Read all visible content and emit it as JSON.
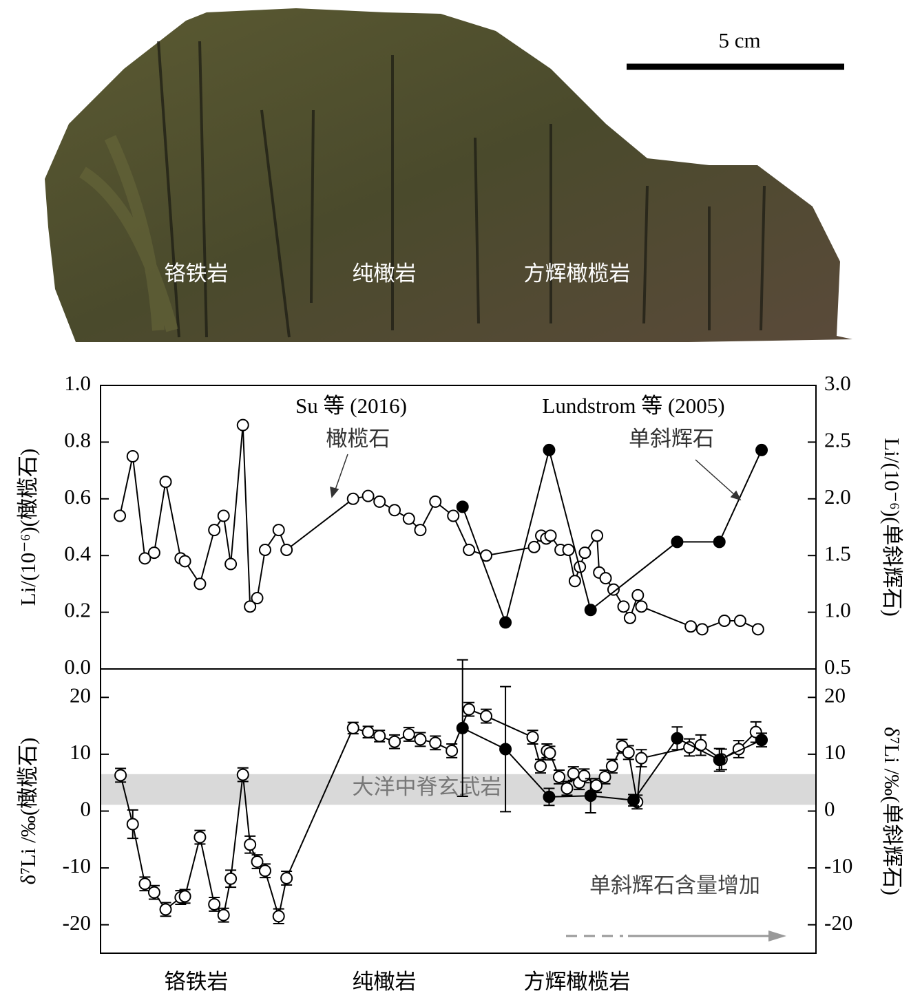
{
  "photo": {
    "scale_bar": "5 cm",
    "labels": [
      "铬铁岩",
      "纯橄岩",
      "方辉橄榄岩"
    ]
  },
  "chart_data": [
    {
      "type": "line",
      "ylabel": "Li/(10⁻⁶)(橄榄石)",
      "y2label": "Li/(10⁻⁶)(单斜辉石)",
      "annotations": [
        "Su 等  (2016)",
        "Lundstrom 等 (2005)"
      ],
      "xlim": [
        0,
        100
      ],
      "ylim": [
        0,
        1
      ],
      "y2lim": [
        0.5,
        3.0
      ],
      "yticks": [
        {
          "value": 0,
          "label": "0.0"
        },
        0.2,
        0.4,
        0.6,
        0.8,
        {
          "value": 1,
          "label": "1.0"
        }
      ],
      "y2ticks": [
        0.5,
        {
          "value": 1,
          "label": "1.0"
        },
        1.5,
        {
          "value": 2,
          "label": "2.0"
        },
        2.5,
        {
          "value": 3,
          "label": "3.0"
        }
      ],
      "series": [
        {
          "name": "橄榄石",
          "color": "#000000",
          "fill": "#ffffff",
          "axis": "y",
          "x": [
            2.7,
            4.5,
            6.2,
            7.5,
            9.1,
            11.2,
            11.8,
            13.9,
            15.9,
            17.2,
            18.2,
            19.9,
            20.9,
            21.9,
            23.0,
            24.9,
            26.0,
            35.3,
            37.4,
            39.0,
            41.1,
            43.1,
            44.7,
            46.8,
            49.3,
            51.5,
            53.9,
            60.6,
            61.6,
            62.3,
            62.9,
            64.3,
            65.4,
            66.3,
            67.0,
            67.7,
            69.4,
            69.7,
            70.6,
            71.7,
            73.1,
            74.0,
            75.1,
            75.6,
            82.5,
            84.1,
            87.2,
            89.4,
            91.9
          ],
          "values": [
            0.54,
            0.75,
            0.39,
            0.41,
            0.66,
            0.39,
            0.38,
            0.3,
            0.49,
            0.54,
            0.37,
            0.86,
            0.22,
            0.25,
            0.42,
            0.49,
            0.42,
            0.6,
            0.61,
            0.59,
            0.56,
            0.53,
            0.49,
            0.59,
            0.54,
            0.42,
            0.4,
            0.43,
            0.47,
            0.46,
            0.47,
            0.42,
            0.42,
            0.31,
            0.36,
            0.41,
            0.47,
            0.34,
            0.32,
            0.28,
            0.22,
            0.18,
            0.26,
            0.22,
            0.15,
            0.14,
            0.17,
            0.17,
            0.14
          ]
        },
        {
          "name": "单斜辉石",
          "color": "#000000",
          "fill": "#000000",
          "axis": "y2",
          "x": [
            50.6,
            56.6,
            62.7,
            68.5,
            80.6,
            86.5,
            92.4
          ],
          "values": [
            1.93,
            0.91,
            2.43,
            1.02,
            1.62,
            1.62,
            2.43
          ]
        }
      ]
    },
    {
      "type": "line",
      "ylabel": "δ⁷Li /‰(橄榄石)",
      "y2label": "δ⁷Li /‰(单斜辉石)",
      "band": [
        1.1,
        6.5
      ],
      "band_label": "大洋中脊玄武岩",
      "band_color": "#d9d9d9",
      "trend_label": "单斜辉石含量增加",
      "xlim": [
        0,
        100
      ],
      "ylim": [
        -25,
        25
      ],
      "y2lim": [
        -25,
        25
      ],
      "yticks": [
        -20,
        -10,
        0,
        10,
        20
      ],
      "y2ticks": [
        -20,
        -10,
        0,
        10,
        20
      ],
      "series": [
        {
          "color": "#000000",
          "fill": "#ffffff",
          "axis": "y",
          "x": [
            2.8,
            4.5,
            6.2,
            7.5,
            9.1,
            11.2,
            11.8,
            13.9,
            15.9,
            17.2,
            18.2,
            19.9,
            20.9,
            21.9,
            23.0,
            24.9,
            26.0,
            35.3,
            37.4,
            39.0,
            41.1,
            43.1,
            44.7,
            46.8,
            49.1,
            51.5,
            53.9,
            60.4,
            61.5,
            62.4,
            62.8,
            64.1,
            65.2,
            66.1,
            66.9,
            67.6,
            69.3,
            70.5,
            71.5,
            72.9,
            73.8,
            75.0,
            75.6,
            82.3,
            83.9,
            86.8,
            89.2,
            91.6
          ],
          "values": [
            6.3,
            -2.3,
            -12.8,
            -14.3,
            -17.3,
            -15.2,
            -15.0,
            -4.6,
            -16.4,
            -18.3,
            -11.9,
            6.4,
            -5.9,
            -8.9,
            -10.5,
            -18.5,
            -11.8,
            14.6,
            13.9,
            13.2,
            12.2,
            13.5,
            12.6,
            12.0,
            10.6,
            17.9,
            16.7,
            13.0,
            7.9,
            10.6,
            10.2,
            6.0,
            4.0,
            6.6,
            5.0,
            6.2,
            4.5,
            6.0,
            7.9,
            11.4,
            10.3,
            1.6,
            9.3,
            11.2,
            11.6,
            9.1,
            10.9,
            13.9
          ],
          "errors": [
            1.2,
            2.5,
            1.2,
            1.2,
            1.2,
            1.2,
            1.2,
            1.2,
            1.2,
            1.2,
            1.5,
            1.2,
            1.5,
            1.2,
            1.2,
            1.3,
            1.2,
            1.0,
            1.0,
            1.0,
            1.2,
            1.2,
            1.2,
            1.2,
            1.2,
            1.2,
            1.2,
            1.2,
            1.2,
            1.2,
            1.2,
            1.2,
            1.2,
            1.2,
            1.2,
            1.2,
            1.2,
            1.2,
            1.2,
            1.2,
            1.2,
            1.2,
            1.5,
            1.5,
            1.8,
            1.8,
            1.5,
            1.8
          ]
        },
        {
          "color": "#000000",
          "fill": "#000000",
          "axis": "y2",
          "x": [
            50.6,
            56.6,
            62.7,
            68.5,
            74.5,
            80.6,
            86.5,
            92.4
          ],
          "values": [
            14.6,
            10.9,
            2.5,
            2.7,
            1.9,
            12.8,
            9.0,
            12.5
          ],
          "errors": [
            12,
            11,
            1.5,
            3,
            1,
            2,
            2,
            1.2
          ]
        }
      ]
    }
  ],
  "rock_labels": [
    "铬铁岩",
    "纯橄岩",
    "方辉橄榄岩"
  ]
}
